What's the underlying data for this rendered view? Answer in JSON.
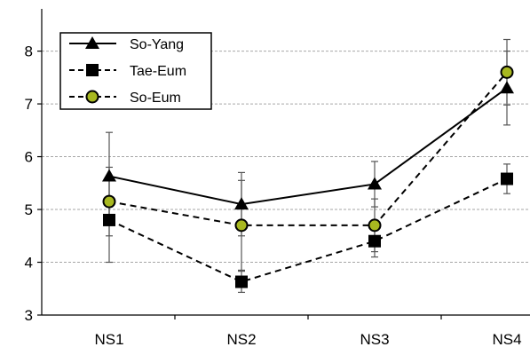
{
  "chart_data": {
    "type": "line",
    "title": "",
    "xlabel": "",
    "ylabel": "",
    "categories": [
      "NS1",
      "NS2",
      "NS3",
      "NS4"
    ],
    "ylim": [
      3,
      8.8
    ],
    "yticks": [
      3,
      4,
      5,
      6,
      7,
      8
    ],
    "grid": "horizontal-dashed",
    "legend_position": "top-left",
    "series": [
      {
        "name": "So-Yang",
        "values": [
          5.63,
          5.1,
          5.48,
          7.3
        ],
        "error": [
          0.83,
          0.6,
          0.43,
          0.7
        ],
        "marker": "triangle",
        "line": "solid",
        "color": "#000000"
      },
      {
        "name": "Tae-Eum",
        "values": [
          4.8,
          3.63,
          4.4,
          5.58
        ],
        "error": [
          0.8,
          0.2,
          0.3,
          0.28
        ],
        "marker": "square",
        "line": "dashed",
        "color": "#000000"
      },
      {
        "name": "So-Eum",
        "values": [
          5.15,
          4.7,
          4.7,
          7.6
        ],
        "error": [
          0.65,
          0.85,
          0.5,
          0.62
        ],
        "marker": "circle",
        "line": "dashed",
        "color": "#000000",
        "marker_fill": "#a8b820"
      }
    ]
  }
}
